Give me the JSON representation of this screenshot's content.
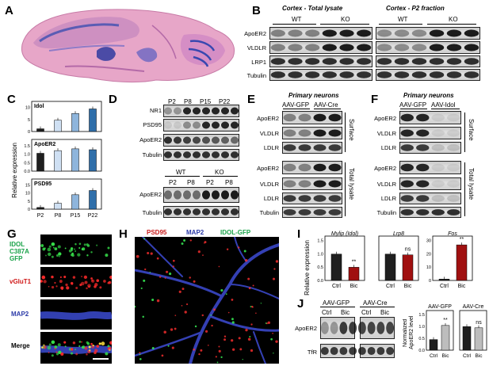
{
  "panels": {
    "A": "A",
    "B": "B",
    "C": "C",
    "D": "D",
    "E": "E",
    "F": "F",
    "G": "G",
    "H": "H",
    "I": "I",
    "J": "J"
  },
  "B": {
    "title_left": "Cortex - Total lysate",
    "title_right": "Cortex - P2 fraction",
    "group_wt": "WT",
    "group_ko": "KO",
    "rows": [
      "ApoER2",
      "VLDLR",
      "LRP1",
      "Tubulin"
    ]
  },
  "C": {
    "ylabel": "Relative expression",
    "categories": [
      "P2",
      "P8",
      "P15",
      "P22"
    ],
    "subplots": [
      {
        "name": "Idol",
        "ticks": [
          "0",
          "5",
          "10"
        ]
      },
      {
        "name": "ApoER2",
        "ticks": [
          "0.0",
          "0.5",
          "1.0",
          "1.5"
        ]
      },
      {
        "name": "PSD95",
        "ticks": [
          "0",
          "5",
          "10",
          "15"
        ]
      }
    ],
    "colors": [
      "#1f1f1f",
      "#cfe0f3",
      "#8eb5dc",
      "#2f6faa"
    ]
  },
  "D": {
    "top_cols": [
      "P2",
      "P8",
      "P15",
      "P22"
    ],
    "top_rows": [
      "NR1",
      "PSD95",
      "ApoER2",
      "Tubulin"
    ],
    "bottom_groups": [
      "WT",
      "KO"
    ],
    "bottom_cols": [
      "P2",
      "P8",
      "P2",
      "P8"
    ],
    "bottom_rows": [
      "ApoER2",
      "Tubulin"
    ]
  },
  "E": {
    "title": "Primary neurons",
    "cols": [
      "AAV-GFP",
      "AAV-Cre"
    ],
    "surface_rows": [
      "ApoER2",
      "VLDLR",
      "LDLR"
    ],
    "total_rows": [
      "ApoER2",
      "VLDLR",
      "LDLR",
      "Tubulin"
    ],
    "side_surface": "Surface",
    "side_total": "Total lysate"
  },
  "F": {
    "title": "Primary neurons",
    "cols": [
      "AAV-GFP",
      "AAV-Idol"
    ],
    "surface_rows": [
      "ApoER2",
      "VLDLR",
      "LDLR"
    ],
    "total_rows": [
      "ApoER2",
      "VLDLR",
      "LDLR",
      "Tubulin"
    ],
    "side_surface": "Surface",
    "side_total": "Total lysate"
  },
  "G": {
    "labels": [
      {
        "text": "IDOL\nC387A\nGFP",
        "color": "#1aa34a"
      },
      {
        "text": "vGluT1",
        "color": "#d01818"
      },
      {
        "text": "MAP2",
        "color": "#2b3aa8"
      },
      {
        "text": "Merge",
        "color": "#000000"
      }
    ]
  },
  "H": {
    "labels": [
      {
        "text": "PSD95",
        "color": "#c81818"
      },
      {
        "text": "MAP2",
        "color": "#2b3aa8"
      },
      {
        "text": "IDOL-GFP",
        "color": "#1aa34a"
      }
    ]
  },
  "I": {
    "ylabel": "Relative expression",
    "categories": [
      "Ctrl",
      "Bic"
    ],
    "subplots": [
      {
        "title": "Mylip (Idol)",
        "ticks": [
          "0.0",
          "0.5",
          "1.0",
          "1.5"
        ],
        "sig": "**"
      },
      {
        "title": "Lrp8",
        "ticks": [],
        "sig": "ns"
      },
      {
        "title": "Fos",
        "ticks": [
          "0",
          "10",
          "20",
          "30"
        ],
        "sig": "**"
      }
    ],
    "colors": [
      "#1f1f1f",
      "#a01010"
    ]
  },
  "J": {
    "groups": [
      "AAV-GFP",
      "AAV-Cre"
    ],
    "cols": [
      "Ctrl",
      "Bic",
      "Ctrl",
      "Bic"
    ],
    "rows": [
      "ApoER2",
      "TfR"
    ],
    "ylabel": "Normalized ApoER2 level",
    "subplots": [
      {
        "title": "AAV-GFP",
        "ticks": [
          "0.0",
          "0.5",
          "1.0",
          "1.5"
        ],
        "sig": "**"
      },
      {
        "title": "AAV-Cre",
        "ticks": [],
        "sig": "ns"
      }
    ],
    "categories": [
      "Ctrl",
      "Bic"
    ],
    "colors": [
      "#1f1f1f",
      "#bdbdbd"
    ]
  },
  "chart_data": [
    {
      "type": "bar",
      "title": "Idol",
      "categories": [
        "P2",
        "P8",
        "P15",
        "P22"
      ],
      "values": [
        1.2,
        5.0,
        8.0,
        10.0
      ],
      "ylim": [
        0,
        12
      ]
    },
    {
      "type": "bar",
      "title": "ApoER2",
      "categories": [
        "P2",
        "P8",
        "P15",
        "P22"
      ],
      "values": [
        1.0,
        1.15,
        1.25,
        1.2
      ],
      "ylim": [
        0,
        1.6
      ]
    },
    {
      "type": "bar",
      "title": "PSD95",
      "categories": [
        "P2",
        "P8",
        "P15",
        "P22"
      ],
      "values": [
        1.0,
        3.5,
        8.5,
        11.0
      ],
      "ylim": [
        0,
        16
      ]
    },
    {
      "type": "bar",
      "title": "Mylip (Idol)",
      "categories": [
        "Ctrl",
        "Bic"
      ],
      "values": [
        1.0,
        0.5
      ],
      "ylim": [
        0,
        1.6
      ]
    },
    {
      "type": "bar",
      "title": "Lrp8",
      "categories": [
        "Ctrl",
        "Bic"
      ],
      "values": [
        1.0,
        0.97
      ],
      "ylim": [
        0,
        1.6
      ]
    },
    {
      "type": "bar",
      "title": "Fos",
      "categories": [
        "Ctrl",
        "Bic"
      ],
      "values": [
        1.0,
        27.0
      ],
      "ylim": [
        0,
        32
      ]
    },
    {
      "type": "bar",
      "title": "AAV-GFP",
      "categories": [
        "Ctrl",
        "Bic"
      ],
      "values": [
        0.45,
        1.05
      ],
      "ylim": [
        0,
        1.6
      ]
    },
    {
      "type": "bar",
      "title": "AAV-Cre",
      "categories": [
        "Ctrl",
        "Bic"
      ],
      "values": [
        1.0,
        0.95
      ],
      "ylim": [
        0,
        1.6
      ]
    }
  ]
}
